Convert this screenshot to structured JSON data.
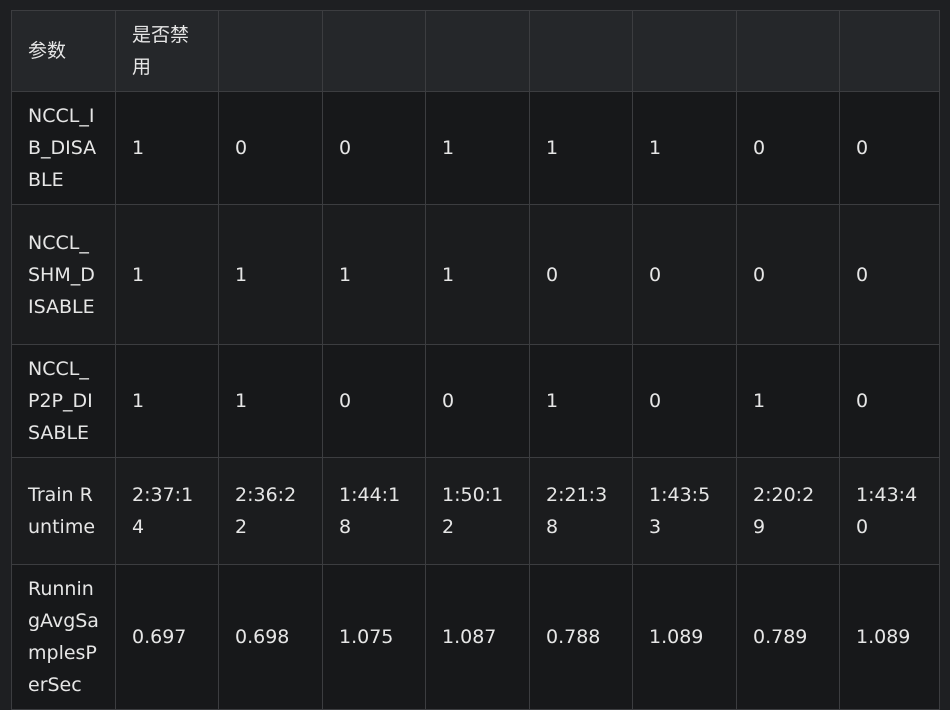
{
  "table": {
    "header": [
      "参数",
      "是否禁用",
      "",
      "",
      "",
      "",
      "",
      "",
      ""
    ],
    "rows": [
      [
        "NCCL_IB_DISABLE",
        "1",
        "0",
        "0",
        "1",
        "1",
        "1",
        "0",
        "0"
      ],
      [
        "NCCL_SHM_DISABLE",
        "1",
        "1",
        "1",
        "1",
        "0",
        "0",
        "0",
        "0"
      ],
      [
        "NCCL_P2P_DISABLE",
        "1",
        "1",
        "0",
        "0",
        "1",
        "0",
        "1",
        "0"
      ],
      [
        "Train Runtime",
        "2:37:14",
        "2:36:22",
        "1:44:18",
        "1:50:12",
        "2:21:38",
        "1:43:53",
        "2:20:29",
        "1:43:40"
      ],
      [
        "RunningAvgSamplesPerSec",
        "0.697",
        "0.698",
        "1.075",
        "1.087",
        "0.788",
        "1.089",
        "0.789",
        "1.089"
      ]
    ]
  }
}
